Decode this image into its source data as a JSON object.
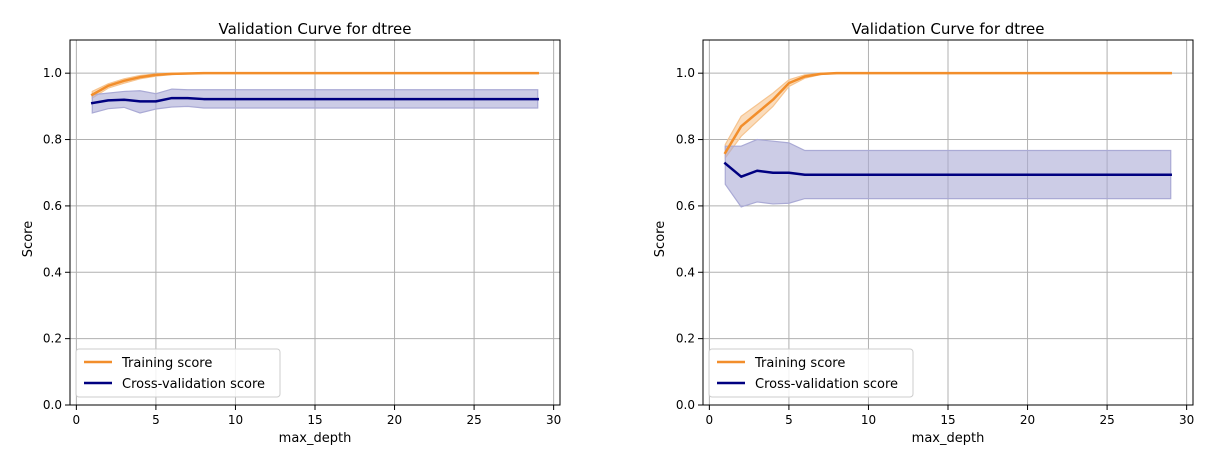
{
  "chart_data": [
    {
      "type": "line",
      "title": "Validation Curve for dtree",
      "xlabel": "max_depth",
      "ylabel": "Score",
      "xlim": [
        -0.4,
        30.4
      ],
      "ylim": [
        0.0,
        1.1
      ],
      "xticks": [
        0,
        5,
        10,
        15,
        20,
        25,
        30
      ],
      "yticks": [
        0.0,
        0.2,
        0.4,
        0.6,
        0.8,
        1.0
      ],
      "ytick_labels": [
        "0.0",
        "0.2",
        "0.4",
        "0.6",
        "0.8",
        "1.0"
      ],
      "grid": true,
      "legend_position": "lower-left",
      "x": [
        1,
        2,
        3,
        4,
        5,
        6,
        7,
        8,
        9,
        10,
        11,
        12,
        13,
        14,
        15,
        16,
        17,
        18,
        19,
        20,
        21,
        22,
        23,
        24,
        25,
        26,
        27,
        28,
        29
      ],
      "series": [
        {
          "name": "Training score",
          "color": "#f28e2b",
          "fill_color": "#f6c48f",
          "mean": [
            0.935,
            0.962,
            0.977,
            0.988,
            0.995,
            0.998,
            0.999,
            1.0,
            1.0,
            1.0,
            1.0,
            1.0,
            1.0,
            1.0,
            1.0,
            1.0,
            1.0,
            1.0,
            1.0,
            1.0,
            1.0,
            1.0,
            1.0,
            1.0,
            1.0,
            1.0,
            1.0,
            1.0,
            1.0
          ],
          "lower": [
            0.925,
            0.955,
            0.97,
            0.983,
            0.991,
            0.996,
            0.998,
            0.999,
            1.0,
            1.0,
            1.0,
            1.0,
            1.0,
            1.0,
            1.0,
            1.0,
            1.0,
            1.0,
            1.0,
            1.0,
            1.0,
            1.0,
            1.0,
            1.0,
            1.0,
            1.0,
            1.0,
            1.0,
            1.0
          ],
          "upper": [
            0.945,
            0.968,
            0.983,
            0.993,
            0.998,
            1.0,
            1.0,
            1.0,
            1.0,
            1.0,
            1.0,
            1.0,
            1.0,
            1.0,
            1.0,
            1.0,
            1.0,
            1.0,
            1.0,
            1.0,
            1.0,
            1.0,
            1.0,
            1.0,
            1.0,
            1.0,
            1.0,
            1.0,
            1.0
          ]
        },
        {
          "name": "Cross-validation score",
          "color": "#000080",
          "fill_color": "#aaaad5",
          "mean": [
            0.91,
            0.918,
            0.92,
            0.915,
            0.915,
            0.925,
            0.925,
            0.922,
            0.922,
            0.922,
            0.922,
            0.922,
            0.922,
            0.922,
            0.922,
            0.922,
            0.922,
            0.922,
            0.922,
            0.922,
            0.922,
            0.922,
            0.922,
            0.922,
            0.922,
            0.922,
            0.922,
            0.922,
            0.922
          ],
          "lower": [
            0.88,
            0.893,
            0.897,
            0.88,
            0.892,
            0.898,
            0.9,
            0.895,
            0.895,
            0.895,
            0.895,
            0.895,
            0.895,
            0.895,
            0.895,
            0.895,
            0.895,
            0.895,
            0.895,
            0.895,
            0.895,
            0.895,
            0.895,
            0.895,
            0.895,
            0.895,
            0.895,
            0.895,
            0.895
          ],
          "upper": [
            0.935,
            0.94,
            0.945,
            0.947,
            0.938,
            0.952,
            0.95,
            0.95,
            0.95,
            0.95,
            0.95,
            0.95,
            0.95,
            0.95,
            0.95,
            0.95,
            0.95,
            0.95,
            0.95,
            0.95,
            0.95,
            0.95,
            0.95,
            0.95,
            0.95,
            0.95,
            0.95,
            0.95,
            0.95
          ]
        }
      ]
    },
    {
      "type": "line",
      "title": "Validation Curve for dtree",
      "xlabel": "max_depth",
      "ylabel": "Score",
      "xlim": [
        -0.4,
        30.4
      ],
      "ylim": [
        0.0,
        1.1
      ],
      "xticks": [
        0,
        5,
        10,
        15,
        20,
        25,
        30
      ],
      "yticks": [
        0.0,
        0.2,
        0.4,
        0.6,
        0.8,
        1.0
      ],
      "ytick_labels": [
        "0.0",
        "0.2",
        "0.4",
        "0.6",
        "0.8",
        "1.0"
      ],
      "grid": true,
      "legend_position": "lower-left",
      "x": [
        1,
        2,
        3,
        4,
        5,
        6,
        7,
        8,
        9,
        10,
        11,
        12,
        13,
        14,
        15,
        16,
        17,
        18,
        19,
        20,
        21,
        22,
        23,
        24,
        25,
        26,
        27,
        28,
        29
      ],
      "series": [
        {
          "name": "Training score",
          "color": "#f28e2b",
          "fill_color": "#f6c48f",
          "mean": [
            0.76,
            0.84,
            0.88,
            0.92,
            0.97,
            0.99,
            0.998,
            1.0,
            1.0,
            1.0,
            1.0,
            1.0,
            1.0,
            1.0,
            1.0,
            1.0,
            1.0,
            1.0,
            1.0,
            1.0,
            1.0,
            1.0,
            1.0,
            1.0,
            1.0,
            1.0,
            1.0,
            1.0,
            1.0
          ],
          "lower": [
            0.745,
            0.81,
            0.855,
            0.9,
            0.96,
            0.985,
            0.996,
            0.999,
            1.0,
            1.0,
            1.0,
            1.0,
            1.0,
            1.0,
            1.0,
            1.0,
            1.0,
            1.0,
            1.0,
            1.0,
            1.0,
            1.0,
            1.0,
            1.0,
            1.0,
            1.0,
            1.0,
            1.0,
            1.0
          ],
          "upper": [
            0.785,
            0.87,
            0.905,
            0.94,
            0.98,
            0.995,
            1.0,
            1.0,
            1.0,
            1.0,
            1.0,
            1.0,
            1.0,
            1.0,
            1.0,
            1.0,
            1.0,
            1.0,
            1.0,
            1.0,
            1.0,
            1.0,
            1.0,
            1.0,
            1.0,
            1.0,
            1.0,
            1.0,
            1.0
          ]
        },
        {
          "name": "Cross-validation score",
          "color": "#000080",
          "fill_color": "#aaaad5",
          "mean": [
            0.728,
            0.688,
            0.706,
            0.7,
            0.7,
            0.694,
            0.694,
            0.694,
            0.694,
            0.694,
            0.694,
            0.694,
            0.694,
            0.694,
            0.694,
            0.694,
            0.694,
            0.694,
            0.694,
            0.694,
            0.694,
            0.694,
            0.694,
            0.694,
            0.694,
            0.694,
            0.694,
            0.694,
            0.694
          ],
          "lower": [
            0.665,
            0.597,
            0.612,
            0.606,
            0.608,
            0.622,
            0.622,
            0.622,
            0.622,
            0.622,
            0.622,
            0.622,
            0.622,
            0.622,
            0.622,
            0.622,
            0.622,
            0.622,
            0.622,
            0.622,
            0.622,
            0.622,
            0.622,
            0.622,
            0.622,
            0.622,
            0.622,
            0.622,
            0.622
          ],
          "upper": [
            0.78,
            0.78,
            0.8,
            0.795,
            0.79,
            0.767,
            0.767,
            0.767,
            0.767,
            0.767,
            0.767,
            0.767,
            0.767,
            0.767,
            0.767,
            0.767,
            0.767,
            0.767,
            0.767,
            0.767,
            0.767,
            0.767,
            0.767,
            0.767,
            0.767,
            0.767,
            0.767,
            0.767,
            0.767
          ]
        }
      ]
    }
  ]
}
